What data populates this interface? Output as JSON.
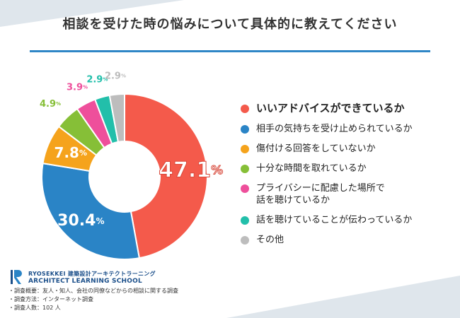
{
  "title": "相談を受けた時の悩みについて具体的に教えてください",
  "chart_data": {
    "type": "pie",
    "title": "相談を受けた時の悩みについて具体的に教えてください",
    "unit": "%",
    "slices": [
      {
        "label": "いいアドバイスができているか",
        "value": 47.1,
        "color": "#f45a4b"
      },
      {
        "label": "相手の気持ちを受け止められているか",
        "value": 30.4,
        "color": "#2a84c6"
      },
      {
        "label": "傷付ける回答をしていないか",
        "value": 7.8,
        "color": "#f5a31c"
      },
      {
        "label": "十分な時間を取れているか",
        "value": 4.9,
        "color": "#86bf37"
      },
      {
        "label": "プライバシーに配慮した場所で話を聴けているか",
        "value": 3.9,
        "color": "#ee4f9b"
      },
      {
        "label": "話を聴けていることが伝わっているか",
        "value": 2.9,
        "color": "#22bfaa"
      },
      {
        "label": "その他",
        "value": 2.9,
        "color": "#bdbdbd"
      }
    ],
    "legend_position": "right"
  },
  "legend": [
    "いいアドバイスができているか",
    "相手の気持ちを受け止められているか",
    "傷付ける回答をしていないか",
    "十分な時間を取れているか",
    "プライバシーに配慮した場所で\n話を聴けているか",
    "話を聴けていることが伝わっているか",
    "その他"
  ],
  "logo": {
    "line1": "RYOSEKKEI 建築設計アーキテクトラーニング",
    "line2": "ARCHITECT LEARNING SCHOOL"
  },
  "notes": [
    "・調査概要：友人・知人、会社の同僚などからの相談に関する調査",
    "・調査方法：インターネット調査",
    "・調査人数：102 人"
  ]
}
